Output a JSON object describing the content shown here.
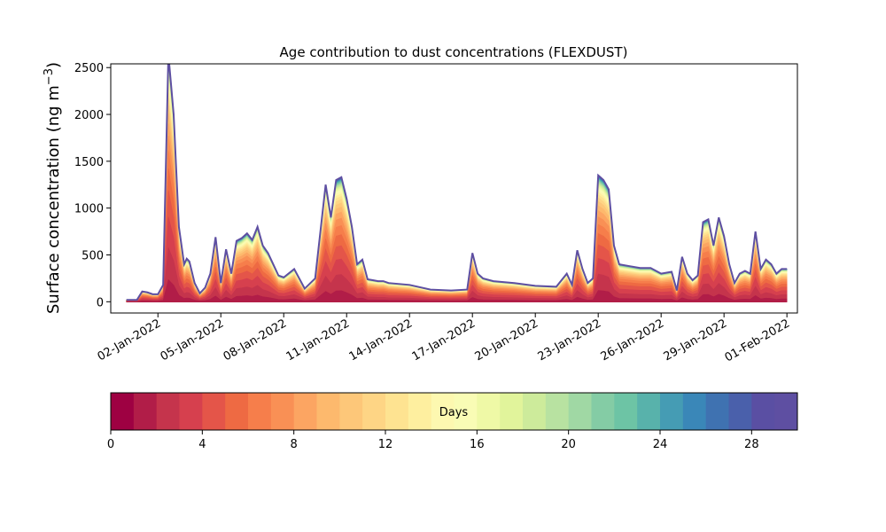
{
  "chart_data": {
    "type": "area",
    "title": "Age contribution to dust concentrations (FLEXDUST)",
    "ylabel_main": "Surface concentration (ng m",
    "ylabel_sup": "−3",
    "ylabel_close": ")",
    "ylim": [
      -120,
      2540
    ],
    "yticks": [
      0,
      500,
      1000,
      1500,
      2000,
      2500
    ],
    "yticklabels": [
      "0",
      "500",
      "1000",
      "1500",
      "2000",
      "2500"
    ],
    "xlim": [
      "2021-12-30T18:00",
      "2022-02-01T12:00"
    ],
    "xticks": [
      "2022-01-02",
      "2022-01-05",
      "2022-01-08",
      "2022-01-11",
      "2022-01-14",
      "2022-01-17",
      "2022-01-20",
      "2022-01-23",
      "2022-01-26",
      "2022-01-29",
      "2022-02-01"
    ],
    "xticklabels": [
      "02-Jan-2022",
      "05-Jan-2022",
      "08-Jan-2022",
      "11-Jan-2022",
      "14-Jan-2022",
      "17-Jan-2022",
      "20-Jan-2022",
      "23-Jan-2022",
      "26-Jan-2022",
      "29-Jan-2022",
      "01-Feb-2022"
    ],
    "age_bins_days": 30,
    "total_series": {
      "x": [
        "2021-12-31T12:00",
        "2022-01-01T00:00",
        "2022-01-01T06:00",
        "2022-01-01T12:00",
        "2022-01-01T18:00",
        "2022-01-02T00:00",
        "2022-01-02T06:00",
        "2022-01-02T12:00",
        "2022-01-02T18:00",
        "2022-01-03T00:00",
        "2022-01-03T03:00",
        "2022-01-03T06:00",
        "2022-01-03T09:00",
        "2022-01-03T12:00",
        "2022-01-03T18:00",
        "2022-01-04T00:00",
        "2022-01-04T06:00",
        "2022-01-04T12:00",
        "2022-01-04T18:00",
        "2022-01-05T00:00",
        "2022-01-05T06:00",
        "2022-01-05T12:00",
        "2022-01-05T18:00",
        "2022-01-06T00:00",
        "2022-01-06T06:00",
        "2022-01-06T12:00",
        "2022-01-06T18:00",
        "2022-01-07T00:00",
        "2022-01-07T06:00",
        "2022-01-07T12:00",
        "2022-01-07T18:00",
        "2022-01-08T00:00",
        "2022-01-08T12:00",
        "2022-01-09T00:00",
        "2022-01-09T12:00",
        "2022-01-10T00:00",
        "2022-01-10T06:00",
        "2022-01-10T12:00",
        "2022-01-10T18:00",
        "2022-01-11T00:00",
        "2022-01-11T06:00",
        "2022-01-11T12:00",
        "2022-01-11T18:00",
        "2022-01-12T00:00",
        "2022-01-12T06:00",
        "2022-01-12T12:00",
        "2022-01-12T18:00",
        "2022-01-13T00:00",
        "2022-01-14T00:00",
        "2022-01-15T00:00",
        "2022-01-16T00:00",
        "2022-01-16T18:00",
        "2022-01-17T00:00",
        "2022-01-17T06:00",
        "2022-01-17T12:00",
        "2022-01-18T00:00",
        "2022-01-19T00:00",
        "2022-01-20T00:00",
        "2022-01-21T00:00",
        "2022-01-21T12:00",
        "2022-01-21T18:00",
        "2022-01-22T00:00",
        "2022-01-22T06:00",
        "2022-01-22T12:00",
        "2022-01-22T18:00",
        "2022-01-23T00:00",
        "2022-01-23T06:00",
        "2022-01-23T12:00",
        "2022-01-23T18:00",
        "2022-01-24T00:00",
        "2022-01-24T12:00",
        "2022-01-25T00:00",
        "2022-01-25T12:00",
        "2022-01-26T00:00",
        "2022-01-26T12:00",
        "2022-01-26T18:00",
        "2022-01-27T00:00",
        "2022-01-27T06:00",
        "2022-01-27T12:00",
        "2022-01-27T18:00",
        "2022-01-28T00:00",
        "2022-01-28T06:00",
        "2022-01-28T12:00",
        "2022-01-28T18:00",
        "2022-01-29T00:00",
        "2022-01-29T06:00",
        "2022-01-29T12:00",
        "2022-01-29T18:00",
        "2022-01-30T00:00",
        "2022-01-30T06:00",
        "2022-01-30T12:00",
        "2022-01-30T18:00",
        "2022-01-31T00:00",
        "2022-01-31T06:00",
        "2022-01-31T12:00",
        "2022-01-31T18:00",
        "2022-02-01T00:00"
      ],
      "y": [
        20,
        20,
        110,
        100,
        80,
        80,
        180,
        2640,
        2000,
        800,
        600,
        400,
        460,
        430,
        200,
        90,
        150,
        300,
        690,
        200,
        560,
        300,
        650,
        680,
        730,
        660,
        800,
        600,
        520,
        400,
        280,
        260,
        350,
        140,
        250,
        1250,
        900,
        1300,
        1330,
        1100,
        800,
        400,
        450,
        240,
        230,
        220,
        220,
        200,
        180,
        130,
        120,
        130,
        520,
        300,
        250,
        220,
        200,
        170,
        160,
        300,
        180,
        550,
        350,
        200,
        250,
        1350,
        1300,
        1200,
        600,
        400,
        380,
        360,
        360,
        300,
        320,
        120,
        480,
        300,
        230,
        280,
        850,
        880,
        600,
        900,
        700,
        400,
        200,
        300,
        330,
        300,
        750,
        350,
        450,
        400,
        300,
        350,
        350
      ]
    },
    "colorbar": {
      "label": "Days",
      "range": [
        0,
        30
      ],
      "ticks": [
        0,
        4,
        8,
        12,
        16,
        20,
        24,
        28
      ],
      "ticklabels": [
        "0",
        "4",
        "8",
        "12",
        "16",
        "20",
        "24",
        "28"
      ],
      "colormap": "Spectral",
      "colors": [
        "#9e0142",
        "#b11d48",
        "#c5344c",
        "#d6404e",
        "#e45549",
        "#ee6a43",
        "#f67e4b",
        "#f99055",
        "#fca562",
        "#fdb96d",
        "#fdc779",
        "#fed585",
        "#fee391",
        "#feef9f",
        "#fdf8b0",
        "#f9fcb5",
        "#eff9a6",
        "#e1f49b",
        "#cdeb9b",
        "#b8e2a1",
        "#a0d8a4",
        "#84cca5",
        "#6dc4a5",
        "#58b2ab",
        "#459cb4",
        "#3a87b8",
        "#3f72b1",
        "#4a60ab",
        "#5a4fa3",
        "#5e4fa2"
      ]
    }
  }
}
